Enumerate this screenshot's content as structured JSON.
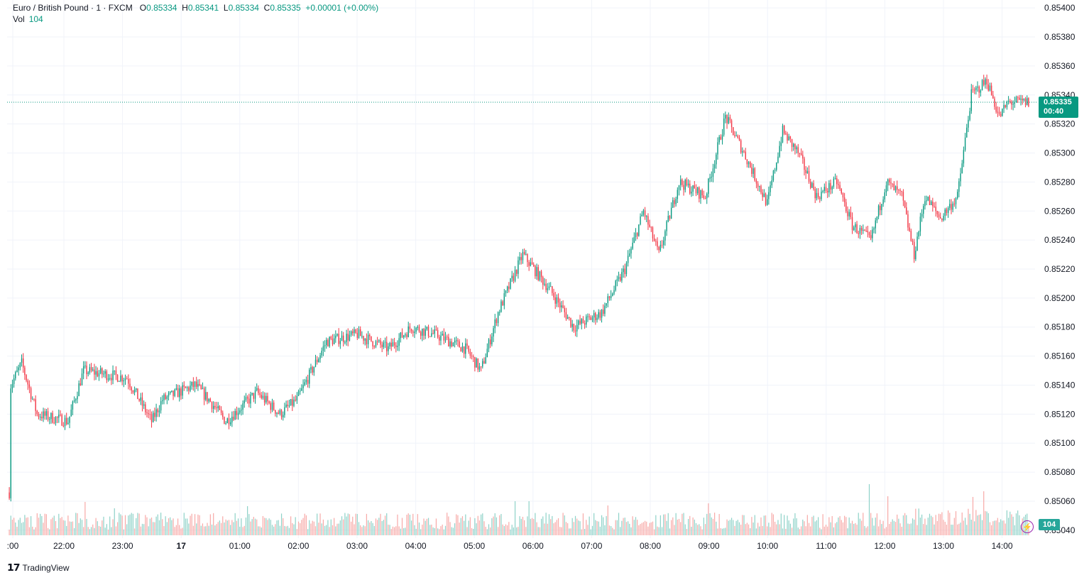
{
  "header": {
    "symbol": "Euro / British Pound · 1 · FXCM",
    "open_label": "O",
    "open": "0.85334",
    "high_label": "H",
    "high": "0.85341",
    "low_label": "L",
    "low": "0.85334",
    "close_label": "C",
    "close": "0.85335",
    "change": "+0.00001 (+0.00%)",
    "vol_label": "Vol",
    "vol_value": "104"
  },
  "price_tag": {
    "price": "0.85335",
    "countdown": "00:40"
  },
  "volume_tag": "104",
  "brand": "TradingView",
  "colors": {
    "up": "#089981",
    "down": "#f23645",
    "vol_up": "#8ed2c8",
    "vol_down": "#f7a9a7"
  },
  "chart_data": {
    "type": "candlestick",
    "y_axis": {
      "ticks": [
        "0.85400",
        "0.85380",
        "0.85360",
        "0.85340",
        "0.85320",
        "0.85300",
        "0.85280",
        "0.85260",
        "0.85240",
        "0.85220",
        "0.85200",
        "0.85180",
        "0.85160",
        "0.85140",
        "0.85120",
        "0.85100",
        "0.85080",
        "0.85060",
        "0.85040"
      ],
      "range": [
        0.85036,
        0.85404
      ],
      "position": "right"
    },
    "x_axis": {
      "ticks": [
        ":00",
        "22:00",
        "23:00",
        "17",
        "01:00",
        "02:00",
        "03:00",
        "04:00",
        "05:00",
        "06:00",
        "07:00",
        "08:00",
        "09:00",
        "10:00",
        "11:00",
        "12:00",
        "13:00",
        "14:00"
      ]
    },
    "last_price": 0.85335,
    "grid": true,
    "series": [
      {
        "name": "Close",
        "approx_path": [
          [
            0,
            0.85066
          ],
          [
            1,
            0.8514
          ],
          [
            8,
            0.85155
          ],
          [
            18,
            0.8512
          ],
          [
            38,
            0.85115
          ],
          [
            48,
            0.8515
          ],
          [
            76,
            0.85145
          ],
          [
            92,
            0.85115
          ],
          [
            99,
            0.8513
          ],
          [
            120,
            0.8514
          ],
          [
            129,
            0.8513
          ],
          [
            140,
            0.85115
          ],
          [
            160,
            0.85135
          ],
          [
            175,
            0.8512
          ],
          [
            186,
            0.8513
          ],
          [
            205,
            0.8517
          ],
          [
            225,
            0.85175
          ],
          [
            245,
            0.85165
          ],
          [
            260,
            0.8518
          ],
          [
            275,
            0.85175
          ],
          [
            295,
            0.85165
          ],
          [
            305,
            0.8515
          ],
          [
            316,
            0.8519
          ],
          [
            332,
            0.8523
          ],
          [
            350,
            0.85205
          ],
          [
            365,
            0.8518
          ],
          [
            383,
            0.8519
          ],
          [
            398,
            0.8522
          ],
          [
            410,
            0.8526
          ],
          [
            420,
            0.8523
          ],
          [
            433,
            0.8528
          ],
          [
            450,
            0.8527
          ],
          [
            463,
            0.85325
          ],
          [
            475,
            0.853
          ],
          [
            490,
            0.85265
          ],
          [
            500,
            0.85315
          ],
          [
            510,
            0.853
          ],
          [
            522,
            0.8527
          ],
          [
            535,
            0.8528
          ],
          [
            545,
            0.8525
          ],
          [
            557,
            0.8524
          ],
          [
            567,
            0.8528
          ],
          [
            577,
            0.8527
          ],
          [
            585,
            0.8523
          ],
          [
            592,
            0.8527
          ],
          [
            602,
            0.85255
          ],
          [
            613,
            0.8527
          ],
          [
            622,
            0.8534
          ],
          [
            632,
            0.8535
          ],
          [
            640,
            0.85325
          ],
          [
            646,
            0.85335
          ]
        ]
      }
    ],
    "volume": {
      "approx_spikes": [
        [
          49,
          47
        ],
        [
          68,
          38
        ],
        [
          154,
          41
        ],
        [
          327,
          48
        ],
        [
          336,
          48
        ],
        [
          387,
          42
        ],
        [
          452,
          45
        ],
        [
          556,
          72
        ],
        [
          568,
          55
        ],
        [
          623,
          48
        ],
        [
          630,
          56
        ]
      ]
    }
  }
}
